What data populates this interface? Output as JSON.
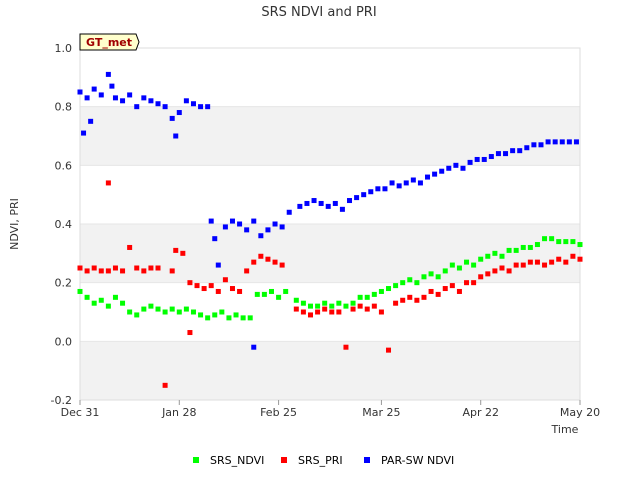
{
  "chart_data": {
    "type": "scatter",
    "title": "SRS NDVI and PRI",
    "badge": "GT_met",
    "xlabel": "Time",
    "ylabel": "NDVI, PRI",
    "xlim": [
      "2023-12-31",
      "2024-05-20"
    ],
    "ylim": [
      -0.2,
      1.0
    ],
    "x_ticks": [
      {
        "date": "2023-12-31",
        "label": "Dec 31"
      },
      {
        "date": "2024-01-28",
        "label": "Jan 28"
      },
      {
        "date": "2024-02-25",
        "label": "Feb 25"
      },
      {
        "date": "2024-03-25",
        "label": "Mar 25"
      },
      {
        "date": "2024-04-22",
        "label": "Apr 22"
      },
      {
        "date": "2024-05-20",
        "label": "May 20"
      }
    ],
    "y_ticks": [
      {
        "value": -0.2,
        "label": "-0.2"
      },
      {
        "value": 0.0,
        "label": "0.0"
      },
      {
        "value": 0.2,
        "label": "0.2"
      },
      {
        "value": 0.4,
        "label": "0.4"
      },
      {
        "value": 0.6,
        "label": "0.6"
      },
      {
        "value": 0.8,
        "label": "0.8"
      },
      {
        "value": 1.0,
        "label": "1.0"
      }
    ],
    "grid": "horizontal bands",
    "legend_position": "bottom",
    "series": [
      {
        "name": "SRS_NDVI",
        "color": "#00ff00",
        "points": [
          [
            "2023-12-31",
            0.17
          ],
          [
            "2024-01-02",
            0.15
          ],
          [
            "2024-01-04",
            0.13
          ],
          [
            "2024-01-06",
            0.14
          ],
          [
            "2024-01-08",
            0.12
          ],
          [
            "2024-01-10",
            0.15
          ],
          [
            "2024-01-12",
            0.13
          ],
          [
            "2024-01-14",
            0.1
          ],
          [
            "2024-01-16",
            0.09
          ],
          [
            "2024-01-18",
            0.11
          ],
          [
            "2024-01-20",
            0.12
          ],
          [
            "2024-01-22",
            0.11
          ],
          [
            "2024-01-24",
            0.1
          ],
          [
            "2024-01-26",
            0.11
          ],
          [
            "2024-01-28",
            0.1
          ],
          [
            "2024-01-30",
            0.11
          ],
          [
            "2024-02-01",
            0.1
          ],
          [
            "2024-02-03",
            0.09
          ],
          [
            "2024-02-05",
            0.08
          ],
          [
            "2024-02-07",
            0.09
          ],
          [
            "2024-02-09",
            0.1
          ],
          [
            "2024-02-11",
            0.08
          ],
          [
            "2024-02-13",
            0.09
          ],
          [
            "2024-02-15",
            0.08
          ],
          [
            "2024-02-17",
            0.08
          ],
          [
            "2024-02-19",
            0.16
          ],
          [
            "2024-02-21",
            0.16
          ],
          [
            "2024-02-23",
            0.17
          ],
          [
            "2024-02-25",
            0.15
          ],
          [
            "2024-02-27",
            0.17
          ],
          [
            "2024-03-01",
            0.14
          ],
          [
            "2024-03-03",
            0.13
          ],
          [
            "2024-03-05",
            0.12
          ],
          [
            "2024-03-07",
            0.12
          ],
          [
            "2024-03-09",
            0.13
          ],
          [
            "2024-03-11",
            0.12
          ],
          [
            "2024-03-13",
            0.13
          ],
          [
            "2024-03-15",
            0.12
          ],
          [
            "2024-03-17",
            0.13
          ],
          [
            "2024-03-19",
            0.15
          ],
          [
            "2024-03-21",
            0.15
          ],
          [
            "2024-03-23",
            0.16
          ],
          [
            "2024-03-25",
            0.17
          ],
          [
            "2024-03-27",
            0.18
          ],
          [
            "2024-03-29",
            0.19
          ],
          [
            "2024-03-31",
            0.2
          ],
          [
            "2024-04-02",
            0.21
          ],
          [
            "2024-04-04",
            0.2
          ],
          [
            "2024-04-06",
            0.22
          ],
          [
            "2024-04-08",
            0.23
          ],
          [
            "2024-04-10",
            0.22
          ],
          [
            "2024-04-12",
            0.24
          ],
          [
            "2024-04-14",
            0.26
          ],
          [
            "2024-04-16",
            0.25
          ],
          [
            "2024-04-18",
            0.27
          ],
          [
            "2024-04-20",
            0.26
          ],
          [
            "2024-04-22",
            0.28
          ],
          [
            "2024-04-24",
            0.29
          ],
          [
            "2024-04-26",
            0.3
          ],
          [
            "2024-04-28",
            0.29
          ],
          [
            "2024-04-30",
            0.31
          ],
          [
            "2024-05-02",
            0.31
          ],
          [
            "2024-05-04",
            0.32
          ],
          [
            "2024-05-06",
            0.32
          ],
          [
            "2024-05-08",
            0.33
          ],
          [
            "2024-05-10",
            0.35
          ],
          [
            "2024-05-12",
            0.35
          ],
          [
            "2024-05-14",
            0.34
          ],
          [
            "2024-05-16",
            0.34
          ],
          [
            "2024-05-18",
            0.34
          ],
          [
            "2024-05-20",
            0.33
          ]
        ]
      },
      {
        "name": "SRS_PRI",
        "color": "#ff0000",
        "points": [
          [
            "2023-12-31",
            0.25
          ],
          [
            "2024-01-02",
            0.24
          ],
          [
            "2024-01-04",
            0.25
          ],
          [
            "2024-01-06",
            0.24
          ],
          [
            "2024-01-08",
            0.24
          ],
          [
            "2024-01-08",
            0.54
          ],
          [
            "2024-01-10",
            0.25
          ],
          [
            "2024-01-12",
            0.24
          ],
          [
            "2024-01-14",
            0.32
          ],
          [
            "2024-01-16",
            0.25
          ],
          [
            "2024-01-18",
            0.24
          ],
          [
            "2024-01-20",
            0.25
          ],
          [
            "2024-01-22",
            0.25
          ],
          [
            "2024-01-24",
            -0.15
          ],
          [
            "2024-01-26",
            0.24
          ],
          [
            "2024-01-27",
            0.31
          ],
          [
            "2024-01-29",
            0.3
          ],
          [
            "2024-01-31",
            0.2
          ],
          [
            "2024-01-31",
            0.03
          ],
          [
            "2024-02-02",
            0.19
          ],
          [
            "2024-02-04",
            0.18
          ],
          [
            "2024-02-06",
            0.19
          ],
          [
            "2024-02-08",
            0.17
          ],
          [
            "2024-02-10",
            0.21
          ],
          [
            "2024-02-12",
            0.18
          ],
          [
            "2024-02-14",
            0.17
          ],
          [
            "2024-02-16",
            0.24
          ],
          [
            "2024-02-18",
            0.27
          ],
          [
            "2024-02-20",
            0.29
          ],
          [
            "2024-02-22",
            0.28
          ],
          [
            "2024-02-24",
            0.27
          ],
          [
            "2024-02-26",
            0.26
          ],
          [
            "2024-03-01",
            0.11
          ],
          [
            "2024-03-03",
            0.1
          ],
          [
            "2024-03-05",
            0.09
          ],
          [
            "2024-03-07",
            0.1
          ],
          [
            "2024-03-09",
            0.11
          ],
          [
            "2024-03-11",
            0.1
          ],
          [
            "2024-03-13",
            0.1
          ],
          [
            "2024-03-15",
            -0.02
          ],
          [
            "2024-03-17",
            0.11
          ],
          [
            "2024-03-19",
            0.12
          ],
          [
            "2024-03-21",
            0.11
          ],
          [
            "2024-03-23",
            0.12
          ],
          [
            "2024-03-25",
            0.1
          ],
          [
            "2024-03-27",
            -0.03
          ],
          [
            "2024-03-29",
            0.13
          ],
          [
            "2024-03-31",
            0.14
          ],
          [
            "2024-04-02",
            0.15
          ],
          [
            "2024-04-04",
            0.14
          ],
          [
            "2024-04-06",
            0.15
          ],
          [
            "2024-04-08",
            0.17
          ],
          [
            "2024-04-10",
            0.16
          ],
          [
            "2024-04-12",
            0.18
          ],
          [
            "2024-04-14",
            0.19
          ],
          [
            "2024-04-16",
            0.17
          ],
          [
            "2024-04-18",
            0.2
          ],
          [
            "2024-04-20",
            0.2
          ],
          [
            "2024-04-22",
            0.22
          ],
          [
            "2024-04-24",
            0.23
          ],
          [
            "2024-04-26",
            0.24
          ],
          [
            "2024-04-28",
            0.25
          ],
          [
            "2024-04-30",
            0.24
          ],
          [
            "2024-05-02",
            0.26
          ],
          [
            "2024-05-04",
            0.26
          ],
          [
            "2024-05-06",
            0.27
          ],
          [
            "2024-05-08",
            0.27
          ],
          [
            "2024-05-10",
            0.26
          ],
          [
            "2024-05-12",
            0.27
          ],
          [
            "2024-05-14",
            0.28
          ],
          [
            "2024-05-16",
            0.27
          ],
          [
            "2024-05-18",
            0.29
          ],
          [
            "2024-05-20",
            0.28
          ]
        ]
      },
      {
        "name": "PAR-SW NDVI",
        "color": "#0000ff",
        "points": [
          [
            "2023-12-31",
            0.85
          ],
          [
            "2024-01-01",
            0.71
          ],
          [
            "2024-01-02",
            0.83
          ],
          [
            "2024-01-03",
            0.75
          ],
          [
            "2024-01-04",
            0.86
          ],
          [
            "2024-01-06",
            0.84
          ],
          [
            "2024-01-08",
            0.91
          ],
          [
            "2024-01-09",
            0.87
          ],
          [
            "2024-01-10",
            0.83
          ],
          [
            "2024-01-12",
            0.82
          ],
          [
            "2024-01-14",
            0.84
          ],
          [
            "2024-01-16",
            0.8
          ],
          [
            "2024-01-18",
            0.83
          ],
          [
            "2024-01-20",
            0.82
          ],
          [
            "2024-01-22",
            0.81
          ],
          [
            "2024-01-24",
            0.8
          ],
          [
            "2024-01-26",
            0.76
          ],
          [
            "2024-01-27",
            0.7
          ],
          [
            "2024-01-28",
            0.78
          ],
          [
            "2024-01-30",
            0.82
          ],
          [
            "2024-02-01",
            0.81
          ],
          [
            "2024-02-03",
            0.8
          ],
          [
            "2024-02-05",
            0.8
          ],
          [
            "2024-02-06",
            0.41
          ],
          [
            "2024-02-07",
            0.35
          ],
          [
            "2024-02-08",
            0.26
          ],
          [
            "2024-02-10",
            0.39
          ],
          [
            "2024-02-12",
            0.41
          ],
          [
            "2024-02-14",
            0.4
          ],
          [
            "2024-02-16",
            0.38
          ],
          [
            "2024-02-18",
            0.41
          ],
          [
            "2024-02-18",
            -0.02
          ],
          [
            "2024-02-20",
            0.36
          ],
          [
            "2024-02-22",
            0.38
          ],
          [
            "2024-02-24",
            0.4
          ],
          [
            "2024-02-26",
            0.39
          ],
          [
            "2024-02-28",
            0.44
          ],
          [
            "2024-03-02",
            0.46
          ],
          [
            "2024-03-04",
            0.47
          ],
          [
            "2024-03-06",
            0.48
          ],
          [
            "2024-03-08",
            0.47
          ],
          [
            "2024-03-10",
            0.46
          ],
          [
            "2024-03-12",
            0.47
          ],
          [
            "2024-03-14",
            0.45
          ],
          [
            "2024-03-16",
            0.48
          ],
          [
            "2024-03-18",
            0.49
          ],
          [
            "2024-03-20",
            0.5
          ],
          [
            "2024-03-22",
            0.51
          ],
          [
            "2024-03-24",
            0.52
          ],
          [
            "2024-03-26",
            0.52
          ],
          [
            "2024-03-28",
            0.54
          ],
          [
            "2024-03-30",
            0.53
          ],
          [
            "2024-04-01",
            0.54
          ],
          [
            "2024-04-03",
            0.55
          ],
          [
            "2024-04-05",
            0.54
          ],
          [
            "2024-04-07",
            0.56
          ],
          [
            "2024-04-09",
            0.57
          ],
          [
            "2024-04-11",
            0.58
          ],
          [
            "2024-04-13",
            0.59
          ],
          [
            "2024-04-15",
            0.6
          ],
          [
            "2024-04-17",
            0.59
          ],
          [
            "2024-04-19",
            0.61
          ],
          [
            "2024-04-21",
            0.62
          ],
          [
            "2024-04-23",
            0.62
          ],
          [
            "2024-04-25",
            0.63
          ],
          [
            "2024-04-27",
            0.64
          ],
          [
            "2024-04-29",
            0.64
          ],
          [
            "2024-05-01",
            0.65
          ],
          [
            "2024-05-03",
            0.65
          ],
          [
            "2024-05-05",
            0.66
          ],
          [
            "2024-05-07",
            0.67
          ],
          [
            "2024-05-09",
            0.67
          ],
          [
            "2024-05-11",
            0.68
          ],
          [
            "2024-05-13",
            0.68
          ],
          [
            "2024-05-15",
            0.68
          ],
          [
            "2024-05-17",
            0.68
          ],
          [
            "2024-05-19",
            0.68
          ]
        ]
      }
    ]
  }
}
